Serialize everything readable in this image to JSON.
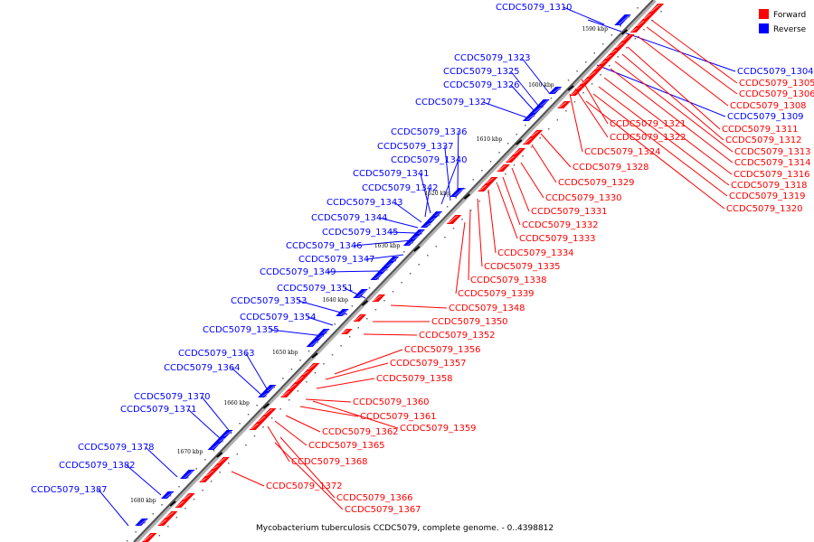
{
  "caption": "Mycobacterium tuberculosis CCDC5079, complete genome. - 0..4398812",
  "legend": [
    {
      "label": "Forward",
      "color": "#ff0000"
    },
    {
      "label": "Reverse",
      "color": "#0000ff"
    }
  ],
  "ticks": [
    "1590 kbp",
    "1600 kbp",
    "1610 kbp",
    "1620 kbp",
    "1630 kbp",
    "1640 kbp",
    "1650 kbp",
    "1660 kbp",
    "1670 kbp",
    "1680 kbp"
  ],
  "reverse_labels": [
    "CCDC5079_1310",
    "CCDC5079_1323",
    "CCDC5079_1325",
    "CCDC5079_1326",
    "CCDC5079_1327",
    "CCDC5079_1336",
    "CCDC5079_1337",
    "CCDC5079_1340",
    "CCDC5079_1341",
    "CCDC5079_1342",
    "CCDC5079_1343",
    "CCDC5079_1344",
    "CCDC5079_1345",
    "CCDC5079_1346",
    "CCDC5079_1347",
    "CCDC5079_1349",
    "CCDC5079_1351",
    "CCDC5079_1353",
    "CCDC5079_1354",
    "CCDC5079_1355",
    "CCDC5079_1363",
    "CCDC5079_1364",
    "CCDC5079_1370",
    "CCDC5079_1371",
    "CCDC5079_1378",
    "CCDC5079_1382",
    "CCDC5079_1387",
    "CCDC5079_1304",
    "CCDC5079_1309"
  ],
  "forward_labels": [
    "CCDC5079_1305",
    "CCDC5079_1306",
    "CCDC5079_1308",
    "CCDC5079_1311",
    "CCDC5079_1312",
    "CCDC5079_1313",
    "CCDC5079_1314",
    "CCDC5079_1316",
    "CCDC5079_1318",
    "CCDC5079_1319",
    "CCDC5079_1320",
    "CCDC5079_1321",
    "CCDC5079_1322",
    "CCDC5079_1324",
    "CCDC5079_1328",
    "CCDC5079_1329",
    "CCDC5079_1330",
    "CCDC5079_1331",
    "CCDC5079_1332",
    "CCDC5079_1333",
    "CCDC5079_1334",
    "CCDC5079_1335",
    "CCDC5079_1338",
    "CCDC5079_1339",
    "CCDC5079_1348",
    "CCDC5079_1350",
    "CCDC5079_1352",
    "CCDC5079_1356",
    "CCDC5079_1357",
    "CCDC5079_1358",
    "CCDC5079_1360",
    "CCDC5079_1361",
    "CCDC5079_1359",
    "CCDC5079_1362",
    "CCDC5079_1365",
    "CCDC5079_1368",
    "CCDC5079_1372",
    "CCDC5079_1366",
    "CCDC5079_1367"
  ]
}
